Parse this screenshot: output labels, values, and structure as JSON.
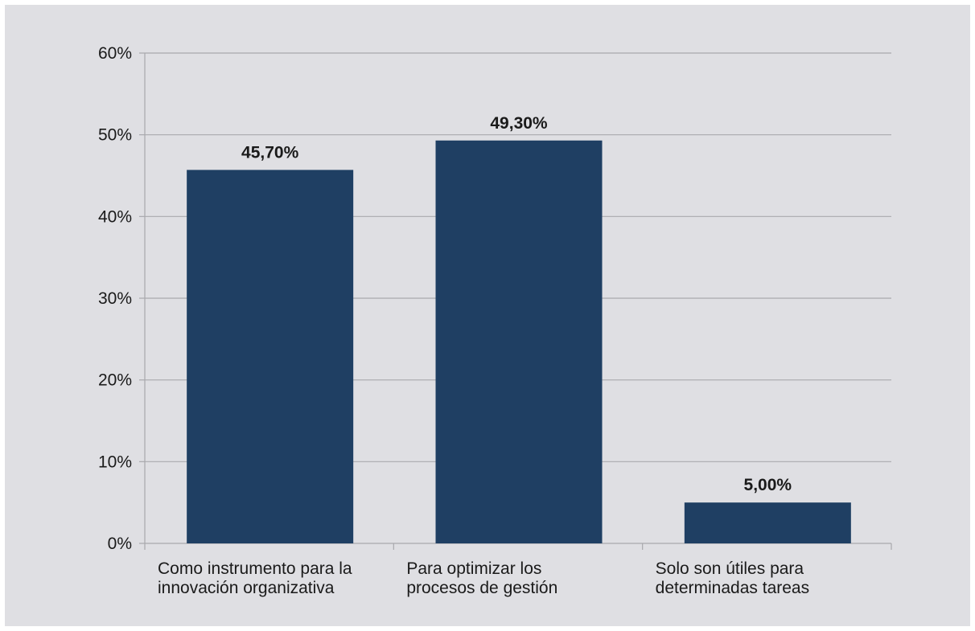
{
  "chart_data": {
    "type": "bar",
    "categories": [
      [
        "Como instrumento para la",
        "innovación organizativa"
      ],
      [
        "Para optimizar los",
        "procesos de gestión"
      ],
      [
        "Solo son útiles para",
        "determinadas tareas"
      ]
    ],
    "values": [
      45.7,
      49.3,
      5.0
    ],
    "data_labels": [
      "45,70%",
      "49,30%",
      "5,00%"
    ],
    "y_ticks": [
      0,
      10,
      20,
      30,
      40,
      50,
      60
    ],
    "y_tick_labels": [
      "0%",
      "10%",
      "20%",
      "30%",
      "40%",
      "50%",
      "60%"
    ],
    "ylim": [
      0,
      60
    ],
    "grid": true,
    "legend": "none",
    "colors": {
      "bar": "#1f3f63",
      "grid": "#a9a9ad",
      "background": "#dfdfe3"
    }
  }
}
